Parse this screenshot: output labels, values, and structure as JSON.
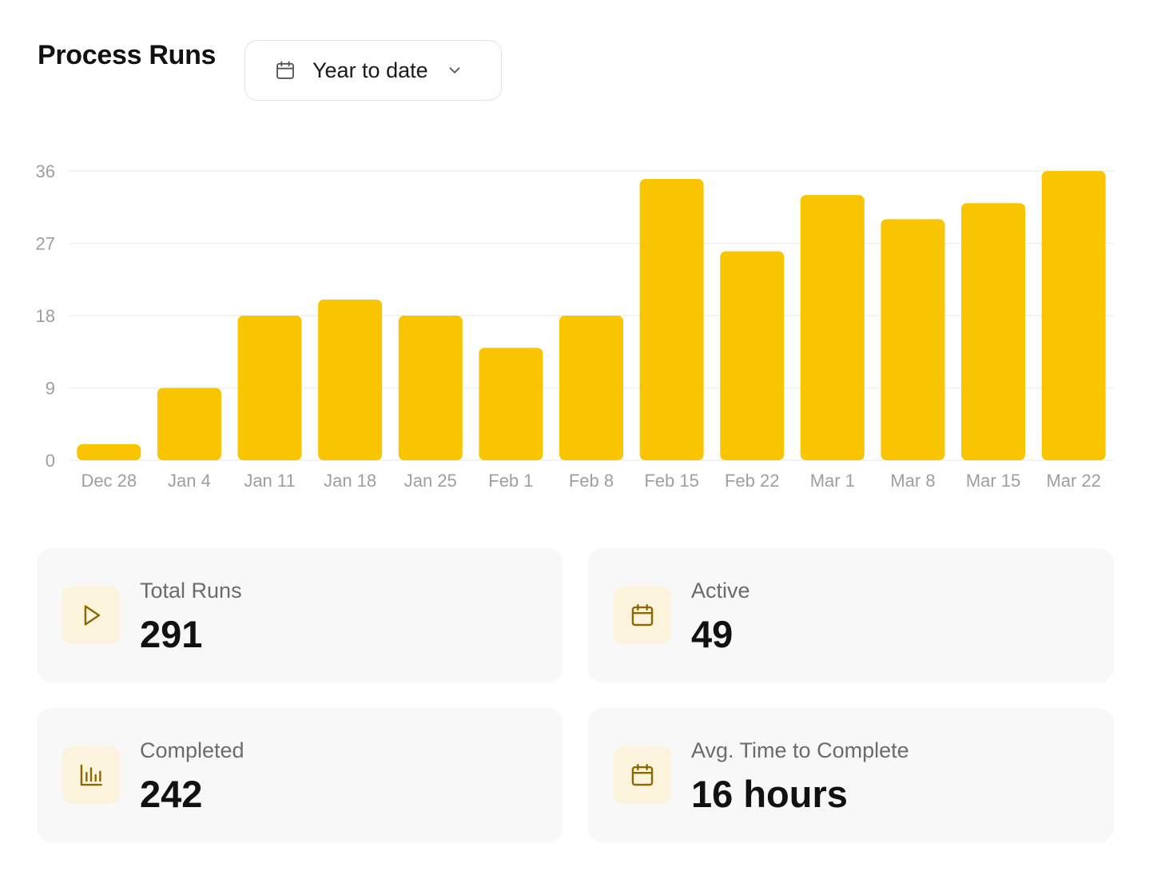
{
  "header": {
    "title": "Process Runs",
    "range_label": "Year to date"
  },
  "colors": {
    "bar": "#f8c500",
    "icon_accent": "#8a6a00",
    "icon_bg": "#fbf3dc",
    "card_bg": "#f8f8f8",
    "axis_text": "#9e9e9e",
    "grid": "#efefef"
  },
  "chart_data": {
    "type": "bar",
    "categories": [
      "Dec 28",
      "Jan 4",
      "Jan 11",
      "Jan 18",
      "Jan 25",
      "Feb 1",
      "Feb 8",
      "Feb 15",
      "Feb 22",
      "Mar 1",
      "Mar 8",
      "Mar 15",
      "Mar 22"
    ],
    "series": [
      {
        "values": [
          2,
          9,
          18,
          20,
          18,
          14,
          18,
          35,
          26,
          33,
          30,
          32,
          36
        ]
      }
    ],
    "yticks": [
      0,
      9,
      18,
      27,
      36
    ],
    "ylim": [
      0,
      36
    ],
    "grid": true,
    "legend": "none"
  },
  "stats": [
    {
      "label": "Total Runs",
      "value": "291",
      "icon": "play-icon"
    },
    {
      "label": "Active",
      "value": "49",
      "icon": "calendar-icon"
    },
    {
      "label": "Completed",
      "value": "242",
      "icon": "bar-chart-icon"
    },
    {
      "label": "Avg. Time to Complete",
      "value": "16 hours",
      "icon": "calendar-icon"
    }
  ]
}
